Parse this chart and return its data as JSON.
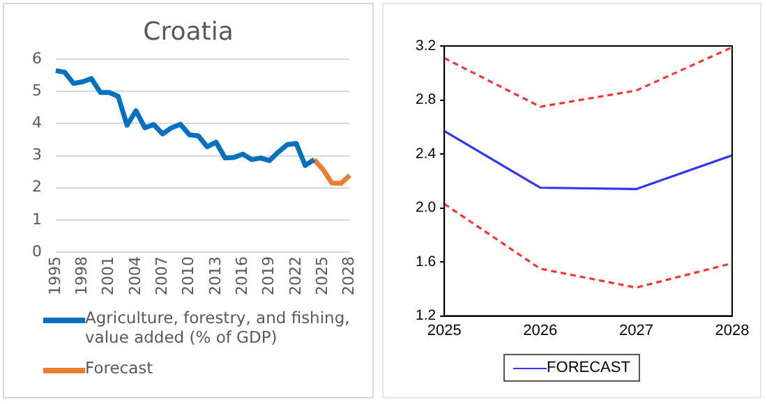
{
  "chart_data": [
    {
      "type": "line",
      "title": "Croatia",
      "categories": [
        "1995",
        null,
        null,
        "1998",
        null,
        null,
        "2001",
        null,
        null,
        "2004",
        null,
        null,
        "2007",
        null,
        null,
        "2010",
        null,
        null,
        "2013",
        null,
        null,
        "2016",
        null,
        null,
        "2019",
        null,
        null,
        "2022",
        null,
        null,
        "2025",
        null,
        null,
        "2028"
      ],
      "series": [
        {
          "name": "Agriculture, forestry, and fishing, value added (% of GDP)",
          "color": "#0070c0",
          "values": [
            5.65,
            5.6,
            5.25,
            5.3,
            5.4,
            4.97,
            4.97,
            4.85,
            3.95,
            4.4,
            3.87,
            3.97,
            3.68,
            3.87,
            3.98,
            3.65,
            3.62,
            3.28,
            3.42,
            2.93,
            2.95,
            3.05,
            2.88,
            2.93,
            2.85,
            3.12,
            3.35,
            3.38,
            2.7,
            2.88,
            null,
            null,
            null,
            null
          ]
        },
        {
          "name": "Forecast",
          "color": "#ed7d31",
          "values": [
            null,
            null,
            null,
            null,
            null,
            null,
            null,
            null,
            null,
            null,
            null,
            null,
            null,
            null,
            null,
            null,
            null,
            null,
            null,
            null,
            null,
            null,
            null,
            null,
            null,
            null,
            null,
            null,
            null,
            2.88,
            2.57,
            2.15,
            2.14,
            2.39
          ]
        }
      ],
      "ylim": [
        0,
        6
      ],
      "yticks": [
        0,
        1,
        2,
        3,
        4,
        5,
        6
      ],
      "grid": "y",
      "legend": "bottom"
    },
    {
      "type": "line",
      "categories": [
        "2025",
        "2026",
        "2027",
        "2028"
      ],
      "ylim": [
        1.2,
        3.2
      ],
      "yticks": [
        1.2,
        1.6,
        {
          "value": 2,
          "label": "2.0"
        },
        2.4,
        2.8,
        3.2
      ],
      "grid": false,
      "legend": "bottom",
      "series": [
        {
          "name": "FORECAST",
          "color": "#3333ff",
          "values": [
            2.57,
            2.15,
            2.14,
            2.39
          ]
        },
        {
          "color": "#ff3333",
          "line_style": "dashed",
          "values": [
            3.11,
            2.75,
            2.87,
            3.19
          ]
        },
        {
          "color": "#ff3333",
          "line_style": "dashed",
          "values": [
            2.03,
            1.55,
            1.41,
            1.59
          ]
        }
      ]
    }
  ]
}
